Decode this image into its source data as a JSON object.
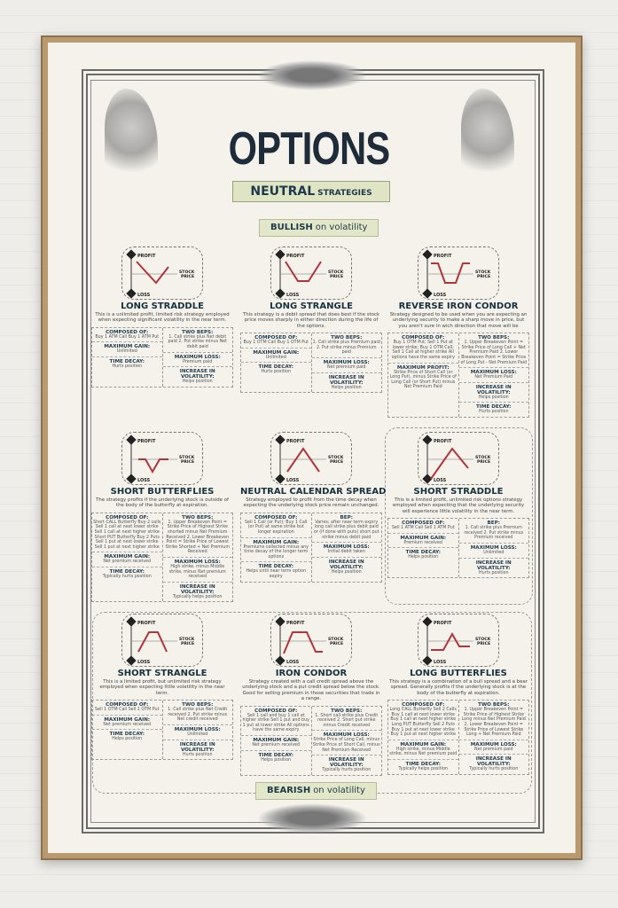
{
  "poster": {
    "title": "OPTIONS",
    "subtitle": "NEUTRAL",
    "subtitle_suffix": "STRATEGIES",
    "bullish": {
      "strong": "BULLISH",
      "rest": "on volatility"
    },
    "bearish": {
      "strong": "BEARISH",
      "rest": "on volatility"
    },
    "axis": {
      "profit": "PROFIT",
      "loss": "LOSS",
      "stock": "STOCK",
      "price": "PRICE"
    },
    "colors": {
      "navy": "#1e2c3a",
      "payoff": "#b0353a",
      "banner": "#dfe4c5"
    }
  },
  "strategies": [
    {
      "title": "LONG STRADDLE",
      "shape": "v",
      "desc": "This is a unlimited profit, limited risk strategy employed when expecting significant volatility in the near term.",
      "left": [
        {
          "label": "COMPOSED OF:",
          "value": "Buy 1 ATM Call\nBuy 1 ATM Put"
        },
        {
          "label": "MAXIMUM GAIN:",
          "value": "Unlimited"
        },
        {
          "label": "TIME DECAY:",
          "value": "Hurts position"
        }
      ],
      "right": [
        {
          "label": "TWO BEPS:",
          "value": "1. Call strike plus Net debit paid\n2. Put strike minus Net debit paid"
        },
        {
          "label": "MAXIMUM LOSS:",
          "value": "Premium paid"
        },
        {
          "label": "INCREASE IN VOLATILITY:",
          "value": "Helps position"
        }
      ]
    },
    {
      "title": "LONG STRANGLE",
      "shape": "u",
      "desc": "This strategy is a debit spread that does best if the stock price moves sharply in either direction during the life of the options.",
      "left": [
        {
          "label": "COMPOSED OF:",
          "value": "Buy 1 OTM Call\nBuy 1 OTM Put"
        },
        {
          "label": "MAXIMUM GAIN:",
          "value": "Unlimited"
        },
        {
          "label": "TIME DECAY:",
          "value": "Hurts position"
        }
      ],
      "right": [
        {
          "label": "TWO BEPS:",
          "value": "1. Call strike plus Premium paid\n2. Put strike minus Premium paid"
        },
        {
          "label": "MAXIMUM LOSS:",
          "value": "Net premium paid"
        },
        {
          "label": "INCREASE IN VOLATILITY:",
          "value": "Helps position"
        }
      ]
    },
    {
      "title": "REVERSE IRON CONDOR",
      "shape": "trough",
      "desc": "Strategy designed to be used when you are expecting an underlying security to make a sharp move in price, but you aren't sure in wich direction that move will be",
      "left": [
        {
          "label": "COMPOSED OF:",
          "value": "Buy 1 OTM Put;\nSell 1 Put at lower strike;\nBuy 1 OTM Call;\nSell 1 Call at higher strike\nAll options have the same expiry"
        },
        {
          "label": "MAXIMUM PROFIT:",
          "value": "Strike Price of Short Call (or Long Put), minus Strike Price of Long Call (or Short Put) minus Net Premium Paid"
        }
      ],
      "right": [
        {
          "label": "TWO BEPS:",
          "value": "1. Upper Breakeven Point = Strike Price of Long Call + Net Premium Paid\n2. Lower Breakeven Point = Strike Price of Long Put - Net Premium Paid"
        },
        {
          "label": "MAXIMUM LOSS:",
          "value": "Net Premium Paid"
        },
        {
          "label": "INCREASE IN VOLATILITY:",
          "value": "Helps position"
        },
        {
          "label": "TIME DECAY:",
          "value": "Hurts position"
        }
      ]
    },
    {
      "title": "SHORT BUTTERFLIES",
      "shape": "dip",
      "desc": "The strategy profits if the underlying stock is outside of the body of the butterfly at expiration.",
      "left": [
        {
          "label": "COMPOSED OF:",
          "value": "Short CALL Butterfly\nBuy 2 calls\nSell 1 call at next lower strike\nSell 1 call at next higher strike\nShort PUT Butterfly\nBuy 2 Puts\nSell 1 put at next lower strike\nSell 1 put at next higher strike"
        },
        {
          "label": "MAXIMUM GAIN:",
          "value": "Net premium received"
        },
        {
          "label": "TIME DECAY:",
          "value": "Typically hurts position"
        }
      ],
      "right": [
        {
          "label": "TWO BEPS:",
          "value": "1. Upper Breakeven Point = Strike Price of Highest Strike shorted minus Net Premium Received 2. Lower Breakeven Point = Strike Price of Lowest Strike Shorted + Net Premium Received"
        },
        {
          "label": "MAXIMUM LOSS:",
          "value": "High strike, minus Middle strike, minus Net premium received"
        },
        {
          "label": "INCREASE IN VOLATILITY:",
          "value": "Typically helps position"
        }
      ]
    },
    {
      "title": "NEUTRAL CALENDAR SPREAD",
      "shape": "tent",
      "desc": "Strategy employed to profit from the time decay when expecting the underlying stock price remain unchanged.",
      "left": [
        {
          "label": "COMPOSED OF:",
          "value": "Sell 1 Call (or Put);\nBuy 1 Call (or Put) at same strike but longer expiration"
        },
        {
          "label": "MAXIMUM GAIN:",
          "value": "Premiums collected minus any time decay of the longer term options"
        },
        {
          "label": "TIME DECAY:",
          "value": "Helps until near term option expiry"
        }
      ],
      "right": [
        {
          "label": "BEP:",
          "value": "Varies; after near term expiry long call strike plus debit paid or (if done with puts) short put strike minus debit paid"
        },
        {
          "label": "MAXIMUM LOSS:",
          "value": "Initial debit taken"
        },
        {
          "label": "INCREASE IN VOLATILITY:",
          "value": "Helps position"
        }
      ]
    },
    {
      "title": "SHORT STRADDLE",
      "shape": "peak",
      "desc": "This is a limited profit, unlimited risk options strategy employed when expecting that the underlying security will experience little volatility in the near term.",
      "left": [
        {
          "label": "COMPOSED OF:",
          "value": "Sell 1 ATM Call\nSell 1 ATM Put"
        },
        {
          "label": "MAXIMUM GAIN:",
          "value": "Premium received"
        },
        {
          "label": "TIME DECAY:",
          "value": "Helps position"
        }
      ],
      "right": [
        {
          "label": "BEP:",
          "value": "1. Call strike plus Premium received\n2. Put strike minus Premium received"
        },
        {
          "label": "MAXIMUM LOSS:",
          "value": "Unlimited"
        },
        {
          "label": "INCREASE IN VOLATILITY:",
          "value": "Hurts position"
        }
      ]
    },
    {
      "title": "SHORT STRANGLE",
      "shape": "mesa",
      "desc": "This is a limited profit, but unlimited risk strategy employed when expecting little volatility in the near term.",
      "left": [
        {
          "label": "COMPOSED OF:",
          "value": "Sell 1 OTM Call\nSell 1 OTM Put"
        },
        {
          "label": "MAXIMUM GAIN:",
          "value": "Net premium received"
        },
        {
          "label": "TIME DECAY:",
          "value": "Helps position"
        }
      ],
      "right": [
        {
          "label": "TWO BEPS:",
          "value": "1. Call strike plus Net Credit received\n2. Put strike minus Net credit received"
        },
        {
          "label": "MAXIMUM LOSS:",
          "value": "Unlimited"
        },
        {
          "label": "INCREASE IN VOLATILITY:",
          "value": "Hurts position"
        }
      ]
    },
    {
      "title": "IRON  CONDOR",
      "shape": "mesaflat",
      "desc": "Strategy created with a call credit spread above the underlying stock and a put credit spread below the stock. Good for selling premium in those securities that trade in a range.",
      "left": [
        {
          "label": "COMPOSED OF:",
          "value": "Sell 1 call and buy 1 call at higher strike\nSell 1 put and buy 1 put at lower strike\nAll options have the same expiry"
        },
        {
          "label": "MAXIMUM GAIN:",
          "value": "Net premium received"
        },
        {
          "label": "TIME DECAY:",
          "value": "Helps position"
        }
      ],
      "right": [
        {
          "label": "TWO BEPS:",
          "value": "1. Short call strike plus Credit received\n2. Short put strike minus Credit received"
        },
        {
          "label": "MAXIMUM LOSS:",
          "value": "Strike Price of Long Call, minus Strike Price of Short Call, minus Net Premium Received"
        },
        {
          "label": "INCREASE IN VOLATILITY:",
          "value": "Typically hurts position"
        }
      ]
    },
    {
      "title": "LONG BUTTERFLIES",
      "shape": "bump",
      "desc": "This strategy is a combination of a bull spread and a bear spread. Generally profits if the underlying stock is at the body of the butterfly at expiration.",
      "left": [
        {
          "label": "COMPOSED OF:",
          "value": "Long CALL Butterfly\nSell 2 Calls\nBuy 1 call at next lower strike\nBuy 1 call at next higher strike\nLong PUT Butterfly\nSell 2 Puts\nBuy 1 put at next lower strike\nBuy 1 put at next higher strike"
        },
        {
          "label": "MAXIMUM GAIN:",
          "value": "High strike, minus Middle strike, minus Net premium paid"
        },
        {
          "label": "TIME DECAY:",
          "value": "Typically helps position"
        }
      ],
      "right": [
        {
          "label": "TWO BEPS:",
          "value": "1. Upper Breakeven Point = Strike Price of Highest Strike Long minus Net Premium Paid\n2. Lower Breakeven Point = Strike Price of Lowest Strike Long + Net Premium Paid"
        },
        {
          "label": "MAXIMUM LOSS:",
          "value": "Net premium paid"
        },
        {
          "label": "INCREASE IN VOLATILITY:",
          "value": "Typically hurts position"
        }
      ]
    }
  ]
}
